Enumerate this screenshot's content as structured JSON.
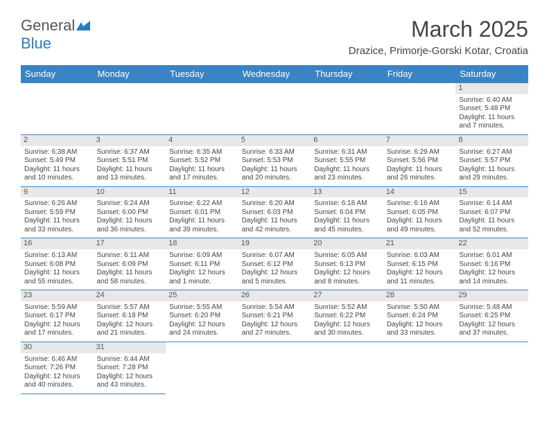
{
  "logo": {
    "part1": "General",
    "part2": "Blue"
  },
  "title": "March 2025",
  "location": "Drazice, Primorje-Gorski Kotar, Croatia",
  "headers": [
    "Sunday",
    "Monday",
    "Tuesday",
    "Wednesday",
    "Thursday",
    "Friday",
    "Saturday"
  ],
  "colors": {
    "header_bg": "#3a83c4",
    "border": "#3a83c4",
    "daynum_bg": "#e8e8e8",
    "text": "#444"
  },
  "weeks": [
    [
      {
        "empty": true
      },
      {
        "empty": true
      },
      {
        "empty": true
      },
      {
        "empty": true
      },
      {
        "empty": true
      },
      {
        "empty": true
      },
      {
        "n": "1",
        "sr": "Sunrise: 6:40 AM",
        "ss": "Sunset: 5:48 PM",
        "d1": "Daylight: 11 hours",
        "d2": "and 7 minutes."
      }
    ],
    [
      {
        "n": "2",
        "sr": "Sunrise: 6:38 AM",
        "ss": "Sunset: 5:49 PM",
        "d1": "Daylight: 11 hours",
        "d2": "and 10 minutes."
      },
      {
        "n": "3",
        "sr": "Sunrise: 6:37 AM",
        "ss": "Sunset: 5:51 PM",
        "d1": "Daylight: 11 hours",
        "d2": "and 13 minutes."
      },
      {
        "n": "4",
        "sr": "Sunrise: 6:35 AM",
        "ss": "Sunset: 5:52 PM",
        "d1": "Daylight: 11 hours",
        "d2": "and 17 minutes."
      },
      {
        "n": "5",
        "sr": "Sunrise: 6:33 AM",
        "ss": "Sunset: 5:53 PM",
        "d1": "Daylight: 11 hours",
        "d2": "and 20 minutes."
      },
      {
        "n": "6",
        "sr": "Sunrise: 6:31 AM",
        "ss": "Sunset: 5:55 PM",
        "d1": "Daylight: 11 hours",
        "d2": "and 23 minutes."
      },
      {
        "n": "7",
        "sr": "Sunrise: 6:29 AM",
        "ss": "Sunset: 5:56 PM",
        "d1": "Daylight: 11 hours",
        "d2": "and 26 minutes."
      },
      {
        "n": "8",
        "sr": "Sunrise: 6:27 AM",
        "ss": "Sunset: 5:57 PM",
        "d1": "Daylight: 11 hours",
        "d2": "and 29 minutes."
      }
    ],
    [
      {
        "n": "9",
        "sr": "Sunrise: 6:26 AM",
        "ss": "Sunset: 5:59 PM",
        "d1": "Daylight: 11 hours",
        "d2": "and 33 minutes."
      },
      {
        "n": "10",
        "sr": "Sunrise: 6:24 AM",
        "ss": "Sunset: 6:00 PM",
        "d1": "Daylight: 11 hours",
        "d2": "and 36 minutes."
      },
      {
        "n": "11",
        "sr": "Sunrise: 6:22 AM",
        "ss": "Sunset: 6:01 PM",
        "d1": "Daylight: 11 hours",
        "d2": "and 39 minutes."
      },
      {
        "n": "12",
        "sr": "Sunrise: 6:20 AM",
        "ss": "Sunset: 6:03 PM",
        "d1": "Daylight: 11 hours",
        "d2": "and 42 minutes."
      },
      {
        "n": "13",
        "sr": "Sunrise: 6:18 AM",
        "ss": "Sunset: 6:04 PM",
        "d1": "Daylight: 11 hours",
        "d2": "and 45 minutes."
      },
      {
        "n": "14",
        "sr": "Sunrise: 6:16 AM",
        "ss": "Sunset: 6:05 PM",
        "d1": "Daylight: 11 hours",
        "d2": "and 49 minutes."
      },
      {
        "n": "15",
        "sr": "Sunrise: 6:14 AM",
        "ss": "Sunset: 6:07 PM",
        "d1": "Daylight: 11 hours",
        "d2": "and 52 minutes."
      }
    ],
    [
      {
        "n": "16",
        "sr": "Sunrise: 6:13 AM",
        "ss": "Sunset: 6:08 PM",
        "d1": "Daylight: 11 hours",
        "d2": "and 55 minutes."
      },
      {
        "n": "17",
        "sr": "Sunrise: 6:11 AM",
        "ss": "Sunset: 6:09 PM",
        "d1": "Daylight: 11 hours",
        "d2": "and 58 minutes."
      },
      {
        "n": "18",
        "sr": "Sunrise: 6:09 AM",
        "ss": "Sunset: 6:11 PM",
        "d1": "Daylight: 12 hours",
        "d2": "and 1 minute."
      },
      {
        "n": "19",
        "sr": "Sunrise: 6:07 AM",
        "ss": "Sunset: 6:12 PM",
        "d1": "Daylight: 12 hours",
        "d2": "and 5 minutes."
      },
      {
        "n": "20",
        "sr": "Sunrise: 6:05 AM",
        "ss": "Sunset: 6:13 PM",
        "d1": "Daylight: 12 hours",
        "d2": "and 8 minutes."
      },
      {
        "n": "21",
        "sr": "Sunrise: 6:03 AM",
        "ss": "Sunset: 6:15 PM",
        "d1": "Daylight: 12 hours",
        "d2": "and 11 minutes."
      },
      {
        "n": "22",
        "sr": "Sunrise: 6:01 AM",
        "ss": "Sunset: 6:16 PM",
        "d1": "Daylight: 12 hours",
        "d2": "and 14 minutes."
      }
    ],
    [
      {
        "n": "23",
        "sr": "Sunrise: 5:59 AM",
        "ss": "Sunset: 6:17 PM",
        "d1": "Daylight: 12 hours",
        "d2": "and 17 minutes."
      },
      {
        "n": "24",
        "sr": "Sunrise: 5:57 AM",
        "ss": "Sunset: 6:18 PM",
        "d1": "Daylight: 12 hours",
        "d2": "and 21 minutes."
      },
      {
        "n": "25",
        "sr": "Sunrise: 5:55 AM",
        "ss": "Sunset: 6:20 PM",
        "d1": "Daylight: 12 hours",
        "d2": "and 24 minutes."
      },
      {
        "n": "26",
        "sr": "Sunrise: 5:54 AM",
        "ss": "Sunset: 6:21 PM",
        "d1": "Daylight: 12 hours",
        "d2": "and 27 minutes."
      },
      {
        "n": "27",
        "sr": "Sunrise: 5:52 AM",
        "ss": "Sunset: 6:22 PM",
        "d1": "Daylight: 12 hours",
        "d2": "and 30 minutes."
      },
      {
        "n": "28",
        "sr": "Sunrise: 5:50 AM",
        "ss": "Sunset: 6:24 PM",
        "d1": "Daylight: 12 hours",
        "d2": "and 33 minutes."
      },
      {
        "n": "29",
        "sr": "Sunrise: 5:48 AM",
        "ss": "Sunset: 6:25 PM",
        "d1": "Daylight: 12 hours",
        "d2": "and 37 minutes."
      }
    ],
    [
      {
        "n": "30",
        "sr": "Sunrise: 6:46 AM",
        "ss": "Sunset: 7:26 PM",
        "d1": "Daylight: 12 hours",
        "d2": "and 40 minutes."
      },
      {
        "n": "31",
        "sr": "Sunrise: 6:44 AM",
        "ss": "Sunset: 7:28 PM",
        "d1": "Daylight: 12 hours",
        "d2": "and 43 minutes."
      },
      {
        "empty": true
      },
      {
        "empty": true
      },
      {
        "empty": true
      },
      {
        "empty": true
      },
      {
        "empty": true
      }
    ]
  ]
}
